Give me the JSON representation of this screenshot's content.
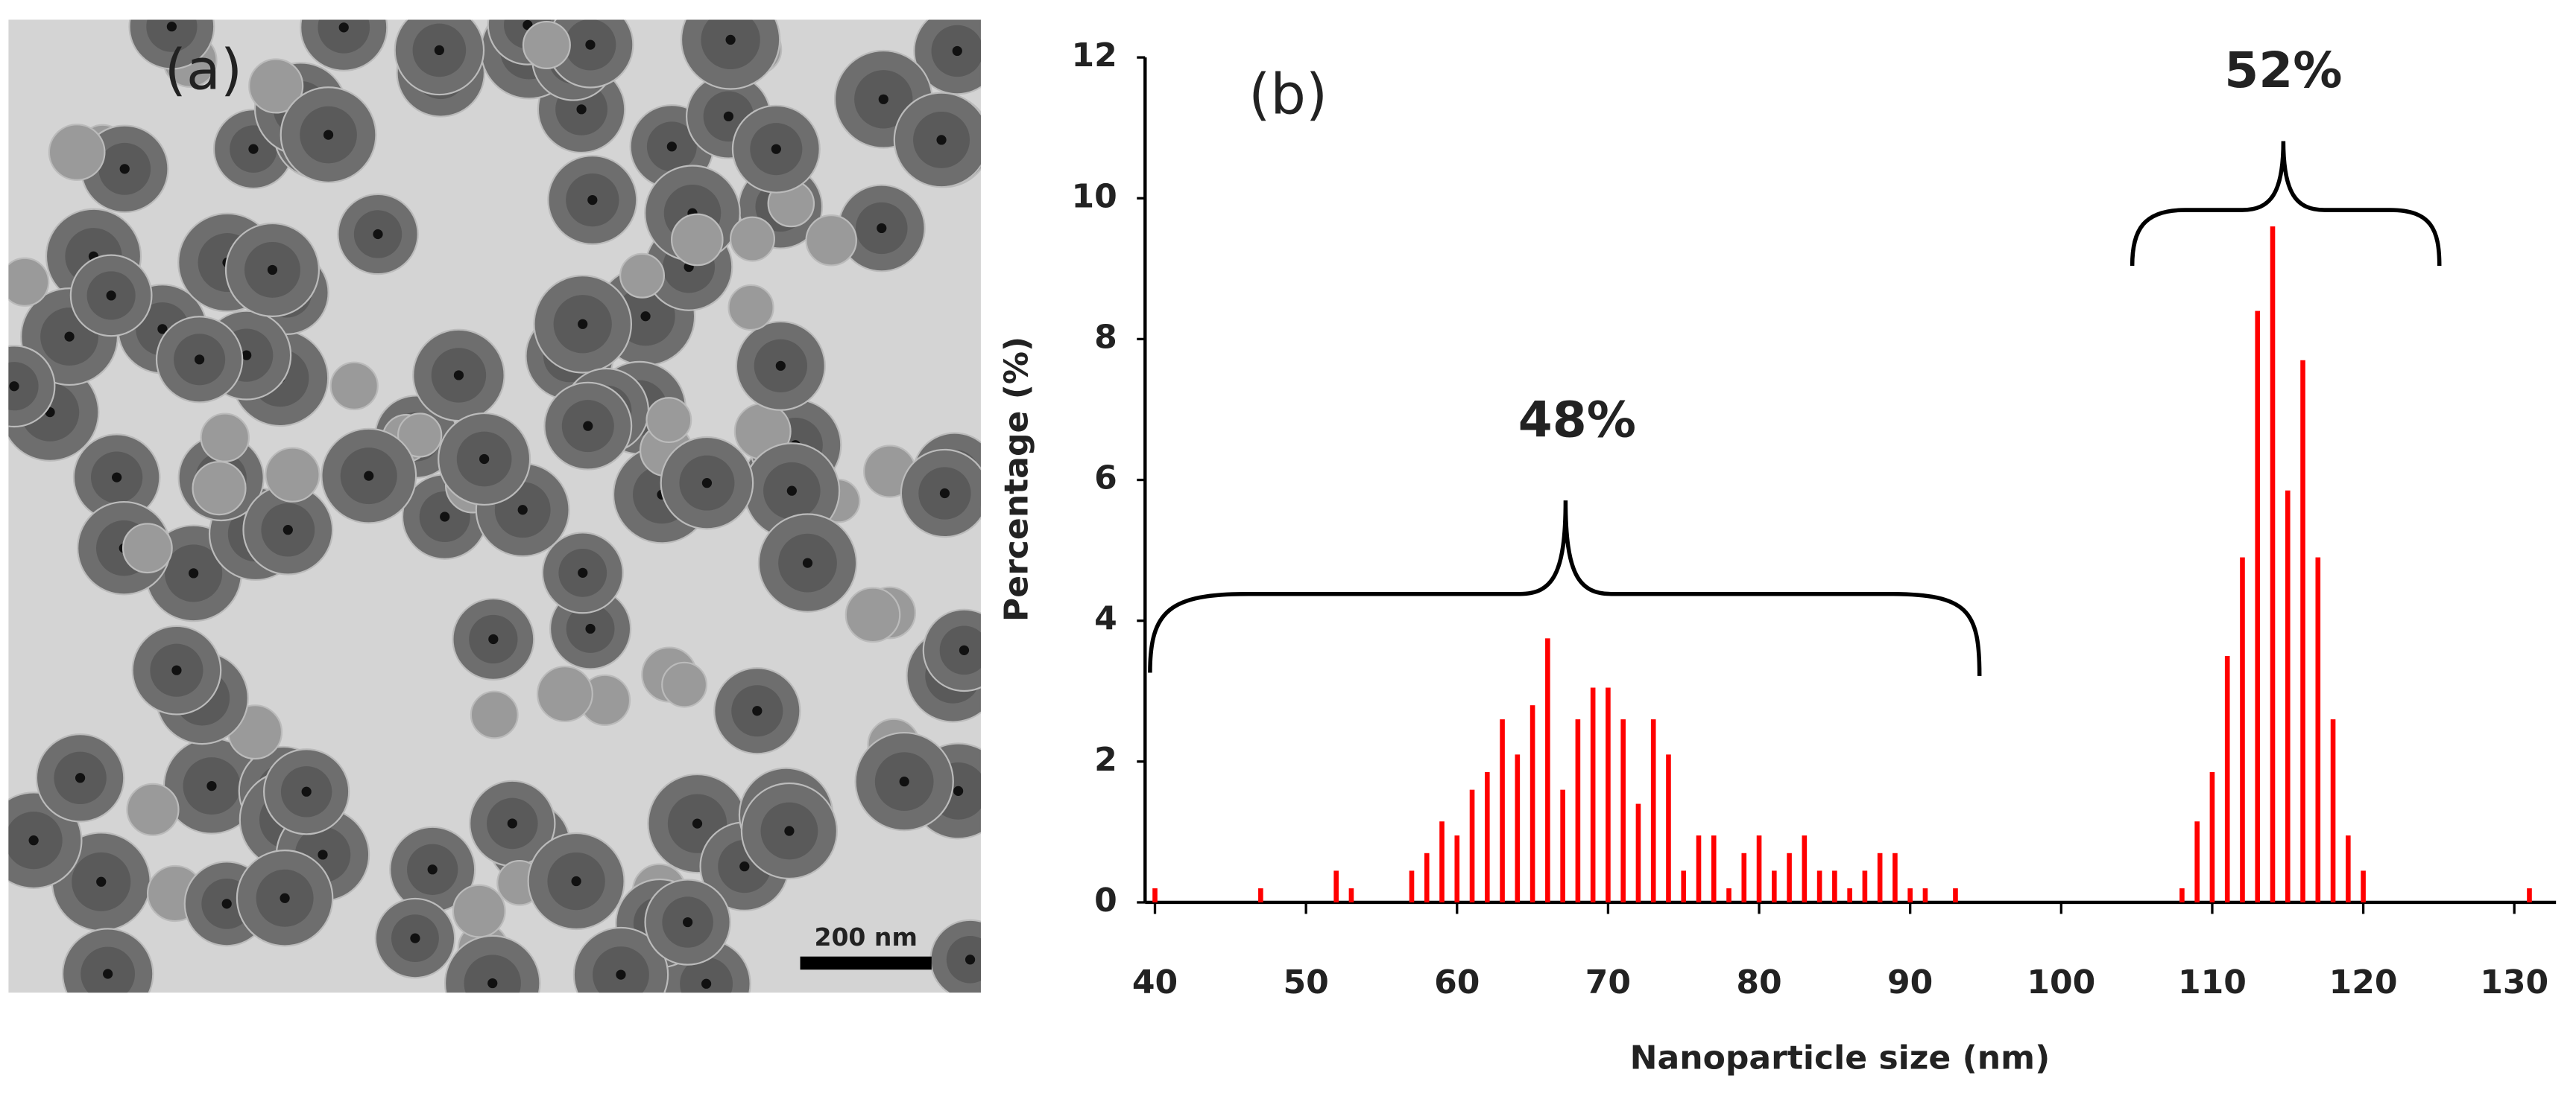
{
  "image_panel": {
    "label": "(a)",
    "scale_bar": "200 nm"
  },
  "chart_data": {
    "type": "bar",
    "panel_label": "(b)",
    "x_label": "Nanoparticle size (nm)",
    "y_label": "Percentage (%)",
    "color": "#ff0000",
    "x": [
      40,
      47,
      52,
      53,
      57,
      58,
      59,
      60,
      61,
      62,
      63,
      64,
      65,
      66,
      67,
      68,
      69,
      70,
      71,
      72,
      73,
      74,
      75,
      76,
      77,
      78,
      79,
      80,
      81,
      82,
      83,
      84,
      85,
      86,
      87,
      88,
      89,
      90,
      91,
      93,
      108,
      109,
      110,
      111,
      112,
      113,
      114,
      115,
      116,
      117,
      118,
      119,
      120,
      131
    ],
    "values": [
      0.2,
      0.2,
      0.45,
      0.2,
      0.45,
      0.7,
      1.15,
      0.95,
      1.6,
      1.85,
      2.6,
      2.1,
      2.8,
      3.75,
      1.6,
      2.6,
      3.05,
      3.05,
      2.6,
      1.4,
      2.6,
      2.1,
      0.45,
      0.95,
      0.95,
      0.2,
      0.7,
      0.95,
      0.45,
      0.7,
      0.95,
      0.45,
      0.45,
      0.2,
      0.45,
      0.7,
      0.7,
      0.2,
      0.2,
      0.2,
      0.2,
      1.15,
      1.85,
      3.5,
      4.9,
      8.4,
      9.6,
      5.85,
      7.7,
      4.9,
      2.6,
      0.95,
      0.45,
      0.2
    ],
    "xlim": [
      40,
      132
    ],
    "xticks": [
      40,
      50,
      60,
      70,
      80,
      90,
      100,
      110,
      120,
      130
    ],
    "ylim": [
      0,
      12
    ],
    "yticks": [
      0,
      2,
      4,
      6,
      8,
      10,
      12
    ],
    "annotations": [
      "48%",
      "52%"
    ]
  }
}
